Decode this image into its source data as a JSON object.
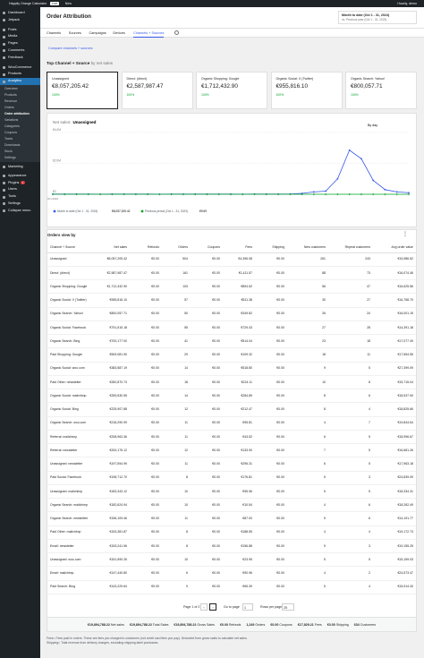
{
  "admin_bar": {
    "site": "Happily Orange Calculator",
    "badge": "Live",
    "new": "New",
    "user": "Howdy, demo"
  },
  "sidebar": {
    "top": [
      "Dashboard",
      "Jetpack",
      "Posts",
      "Media",
      "Pages",
      "Comments",
      "Feedback",
      "WooCommerce",
      "Products",
      "Analytics"
    ],
    "active_index": 9,
    "submenu": [
      "Overview",
      "Products",
      "Revenue",
      "Orders",
      "Order attribution",
      "Variations",
      "Categories",
      "Coupons",
      "Taxes",
      "Downloads",
      "Stock",
      "Settings"
    ],
    "current_index": 4,
    "bottom": [
      "Marketing",
      "Appearance",
      "Plugins",
      "Users",
      "Tools",
      "Settings",
      "Collapse menu"
    ],
    "plugins_badge": 1
  },
  "header": {
    "title": "Order Attribution",
    "date_range": "Month to date (Oct 1 - 31, 2024)",
    "compare": "vs. Previous year (Oct 1 - 31, 2023)"
  },
  "tabs": {
    "items": [
      "Channels",
      "Sources",
      "Campaigns",
      "Devices",
      "Channels + Sources"
    ],
    "active_index": 4
  },
  "compare_link": "Compare channels + sources",
  "top_section": {
    "title": "Top Channel + Source",
    "subtitle": "by net sales",
    "cards": [
      {
        "label": "Unassigned",
        "value": "€8,057,205.42",
        "delta": "100%"
      },
      {
        "label": "Direct: (direct)",
        "value": "€2,587,987.47",
        "delta": "100%"
      },
      {
        "label": "Organic Shopping: Google",
        "value": "€1,712,432.90",
        "delta": "100%"
      },
      {
        "label": "Organic Social: X (Twitter)",
        "value": "€955,816.10",
        "delta": "100%"
      },
      {
        "label": "Organic Search: Yahoo!",
        "value": "€800,057.71",
        "delta": "100%"
      }
    ],
    "selected_index": 0
  },
  "chart_data": {
    "type": "line",
    "title": "Net sales:",
    "subtitle": "Unassigned",
    "interval": "By day",
    "categories": [
      "Oct 2024",
      null,
      null,
      null,
      null,
      null,
      null,
      null,
      null,
      null,
      null,
      null,
      null,
      null,
      null,
      null,
      null,
      null,
      null,
      null,
      null,
      null,
      null,
      null,
      null,
      null,
      null,
      null,
      null,
      null,
      null
    ],
    "series": [
      {
        "name": "Month to date (Oct 1 - 31, 2024)",
        "total": "€8,057,205.42",
        "color": "#3858e9",
        "values": [
          15000,
          12000,
          10000,
          14000,
          9000,
          11000,
          13000,
          10000,
          12000,
          9000,
          15000,
          11000,
          10000,
          12000,
          14000,
          10000,
          9000,
          13000,
          11000,
          12000,
          20000,
          60000,
          150000,
          200000,
          1000000,
          2850000,
          2300000,
          900000,
          300000,
          150000,
          100000
        ]
      },
      {
        "name": "Previous period (Oct 1 - 31, 2023)",
        "total": "€9.69",
        "color": "#00a32a",
        "values": [
          0,
          0,
          0,
          0,
          0,
          0,
          0,
          0,
          0,
          0,
          0,
          0,
          0,
          0,
          0,
          0,
          0,
          0,
          0,
          0,
          0,
          0,
          0,
          0,
          0,
          0,
          0,
          0,
          0,
          0,
          0
        ]
      }
    ],
    "ylim": [
      0,
      4400000
    ],
    "yticks": [
      {
        "value": 0,
        "label": "€0"
      },
      {
        "value": 2000000,
        "label": "€2.0M"
      },
      {
        "value": 4000000,
        "label": "€4.0M"
      }
    ],
    "grid": true
  },
  "table": {
    "title": "Orders view by",
    "columns": [
      "Channel + Source",
      "Net sales",
      "Refunds",
      "Orders",
      "Coupons",
      "Fees",
      "Shipping",
      "New customers",
      "Repeat customers",
      "Avg order value"
    ],
    "rows": [
      [
        "Unassigned",
        "€8,057,205.42",
        "€0.00",
        "504",
        "€0.00",
        "€4,396.08",
        "€0.00",
        "261",
        "243",
        "€15,986.52"
      ],
      [
        "Direct: (direct)",
        "€2,587,987.47",
        "€0.00",
        "161",
        "€0.00",
        "€1,411.57",
        "€0.00",
        "88",
        "73",
        "€16,074.46"
      ],
      [
        "Organic Shopping: Google",
        "€1,712,432.90",
        "€0.00",
        "103",
        "€0.00",
        "€894.52",
        "€0.00",
        "56",
        "47",
        "€16,625.56"
      ],
      [
        "Organic Social: X (Twitter)",
        "€955,816.10",
        "€0.00",
        "57",
        "€0.00",
        "€511.38",
        "€0.00",
        "30",
        "27",
        "€16,768.70"
      ],
      [
        "Organic Search: Yahoo!",
        "€800,057.71",
        "€0.00",
        "50",
        "€0.00",
        "€349.82",
        "€0.00",
        "26",
        "24",
        "€16,001.15"
      ],
      [
        "Organic Social: Facebook",
        "€791,515.18",
        "€0.00",
        "55",
        "€0.00",
        "€729.43",
        "€0.00",
        "27",
        "28",
        "€14,391.18"
      ],
      [
        "Organic Search: Bing",
        "€700,177.00",
        "€0.00",
        "41",
        "€0.00",
        "€514.04",
        "€0.00",
        "23",
        "18",
        "€17,077.49"
      ],
      [
        "Paid Shopping: Google",
        "€509,081.90",
        "€0.00",
        "29",
        "€0.00",
        "€109.32",
        "€0.00",
        "18",
        "11",
        "€17,554.55"
      ],
      [
        "Organic Social: woo.com",
        "€383,587.19",
        "€0.00",
        "14",
        "€0.00",
        "€518.80",
        "€0.00",
        "9",
        "5",
        "€27,399.09"
      ],
      [
        "Paid Other: newsletter",
        "€282,870.73",
        "€0.00",
        "18",
        "€0.00",
        "€224.11",
        "€0.00",
        "10",
        "8",
        "€15,715.04"
      ],
      [
        "Organic Social: mailchimp",
        "€259,530.55",
        "€0.00",
        "14",
        "€0.00",
        "€284.89",
        "€0.00",
        "8",
        "6",
        "€18,537.90"
      ],
      [
        "Organic Social: Bing",
        "€225,907.88",
        "€0.00",
        "12",
        "€0.00",
        "€212.47",
        "€0.00",
        "8",
        "4",
        "€18,825.66"
      ],
      [
        "Organic Search: woo.com",
        "€218,290.99",
        "€0.00",
        "11",
        "€0.00",
        "€95.81",
        "€0.00",
        "4",
        "7",
        "€19,844.64"
      ],
      [
        "Referral: mailchimp",
        "€208,963.36",
        "€0.00",
        "11",
        "€0.00",
        "€43.52",
        "€0.00",
        "6",
        "5",
        "€18,996.67"
      ],
      [
        "Referral: newsletter",
        "€200,175.12",
        "€0.00",
        "12",
        "€0.00",
        "€133.90",
        "€0.00",
        "7",
        "5",
        "€16,681.26"
      ],
      [
        "Unassigned: newsletter",
        "€197,594.99",
        "€0.00",
        "11",
        "€0.00",
        "€295.31",
        "€0.00",
        "6",
        "5",
        "€17,963.18"
      ],
      [
        "Paid Social: Facebook",
        "€198,712.70",
        "€0.00",
        "8",
        "€0.00",
        "€176.81",
        "€0.00",
        "5",
        "3",
        "€24,839.09"
      ],
      [
        "Unassigned: mailchimp",
        "€183,343.12",
        "€0.00",
        "10",
        "€0.00",
        "€95.96",
        "€0.00",
        "5",
        "5",
        "€18,334.31"
      ],
      [
        "Organic Search: mailchimp",
        "€182,624.94",
        "€0.00",
        "10",
        "€0.00",
        "€10.54",
        "€0.00",
        "4",
        "6",
        "€18,262.49"
      ],
      [
        "Organic Search: newsletter",
        "€156,109.46",
        "€0.00",
        "11",
        "€0.00",
        "€87.00",
        "€0.00",
        "5",
        "6",
        "€14,191.77"
      ],
      [
        "Paid Other: mailchimp",
        "€153,381.87",
        "€0.00",
        "8",
        "€0.00",
        "€188.55",
        "€0.00",
        "4",
        "4",
        "€19,172.73"
      ],
      [
        "Email: newsletter",
        "€153,241.96",
        "€0.00",
        "8",
        "€0.00",
        "€156.88",
        "€0.00",
        "5",
        "3",
        "€19,155.25"
      ],
      [
        "Unassigned: woo.com",
        "€151,590.26",
        "€0.00",
        "10",
        "€0.00",
        "€23.95",
        "€0.00",
        "5",
        "5",
        "€15,159.03"
      ],
      [
        "Email: mailchimp",
        "€147,440.80",
        "€0.00",
        "6",
        "€0.00",
        "€90.96",
        "€0.00",
        "4",
        "2",
        "€24,573.47"
      ],
      [
        "Paid Search: Bing",
        "€143,229.64",
        "€0.00",
        "9",
        "€0.00",
        "€65.39",
        "€0.00",
        "5",
        "4",
        "€15,914.40"
      ]
    ],
    "pagination": {
      "page": "Page 1 of 2",
      "goto": "Go to page",
      "goto_value": "1",
      "rows_per_page": "Rows per page",
      "rows_value": "25"
    },
    "totals": [
      [
        "€19,894,788.22",
        "Net sales"
      ],
      [
        "€19,894,788.22",
        "Total Sales"
      ],
      [
        "€19,894,788.22",
        "Gross Sales"
      ],
      [
        "€0.00",
        "Refunds"
      ],
      [
        "1,249",
        "Orders"
      ],
      [
        "€0.00",
        "Coupons"
      ],
      [
        "€17,829.21",
        "Fees"
      ],
      [
        "€0.00",
        "Shipping"
      ],
      [
        "634",
        "Customers"
      ]
    ]
  },
  "footnotes": [
    "Fees¹: Fees paid in orders. These are fees you charged to customers (not credit card fees you pay). Deducted from gross sales to calculate net sales.",
    "Shipping²: Total revenue from delivery charges, excluding shipping label purchases."
  ]
}
